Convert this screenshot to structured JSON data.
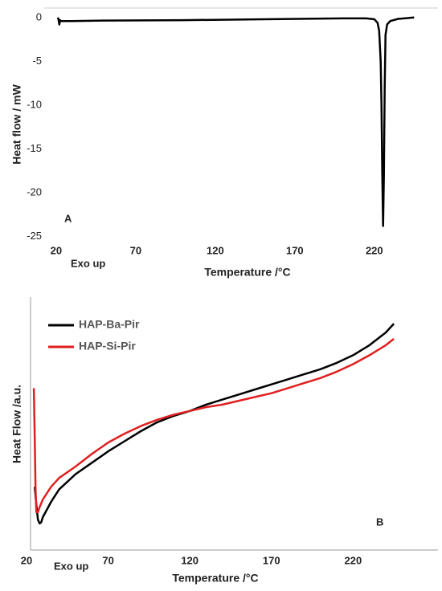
{
  "chart_data": [
    {
      "type": "line",
      "xlabel": "Temperature /°C",
      "ylabel": "Heat flow / mW",
      "annotations": [
        "A",
        "Exo up"
      ],
      "x": [
        21,
        21.5,
        22,
        22.5,
        23,
        25,
        30,
        50,
        100,
        150,
        200,
        215,
        220,
        222,
        223,
        224,
        224.5,
        225,
        225.5,
        226,
        226.5,
        227,
        228,
        230,
        235,
        245
      ],
      "series": [
        {
          "name": null,
          "color": "#000000",
          "values": [
            0,
            -0.2,
            -0.8,
            -0.3,
            -0.4,
            -0.4,
            -0.4,
            -0.35,
            -0.3,
            -0.2,
            -0.1,
            -0.1,
            -0.2,
            -0.6,
            -1.5,
            -5,
            -10,
            -18,
            -23.8,
            -18,
            -8,
            -2,
            -0.8,
            -0.4,
            -0.15,
            0
          ]
        }
      ],
      "xlim": [
        14,
        260
      ],
      "xticks": [
        20,
        70,
        120,
        170,
        220
      ],
      "ylim": [
        -25.5,
        0.9
      ],
      "yticks": [
        0,
        -5,
        -10,
        -15,
        -20,
        -25
      ]
    },
    {
      "type": "line",
      "xlabel": "Temperature /°C",
      "ylabel": "Heat Flow /a.u.",
      "annotations": [
        "B",
        "Exo up"
      ],
      "legend": "upper left",
      "series": [
        {
          "name": "HAP-Ba-Pir",
          "color": "#000000",
          "x": [
            25,
            26,
            27,
            28,
            29,
            30,
            35,
            40,
            50,
            60,
            70,
            80,
            90,
            100,
            110,
            120,
            130,
            140,
            150,
            160,
            170,
            180,
            190,
            200,
            210,
            220,
            230,
            240,
            245
          ],
          "values": [
            25,
            18,
            12,
            10.5,
            11,
            13,
            19,
            24,
            30,
            34.5,
            39,
            43,
            47,
            50.5,
            53,
            55,
            57.5,
            59.5,
            61.5,
            63.5,
            65.5,
            67.5,
            69.5,
            71.5,
            74,
            77,
            81,
            86,
            89.5
          ]
        },
        {
          "name": "HAP-Si-Pir",
          "color": "#e02020",
          "x": [
            24.5,
            25,
            25.5,
            26,
            27,
            28,
            30,
            35,
            40,
            50,
            60,
            70,
            80,
            90,
            100,
            110,
            120,
            130,
            140,
            150,
            160,
            170,
            180,
            190,
            200,
            210,
            220,
            230,
            240,
            245
          ],
          "values": [
            64,
            45,
            25,
            15,
            15,
            17,
            20,
            25,
            28.5,
            33,
            38,
            42.5,
            46,
            49,
            51.5,
            53.5,
            55,
            56.5,
            57.5,
            59,
            60.5,
            62,
            64,
            66,
            68,
            70.5,
            73.5,
            77,
            81,
            83.5
          ]
        }
      ],
      "xlim": [
        20,
        272
      ],
      "xticks": [
        20,
        70,
        120,
        170,
        220
      ],
      "ylim": [
        0,
        100
      ],
      "yticks": []
    }
  ]
}
